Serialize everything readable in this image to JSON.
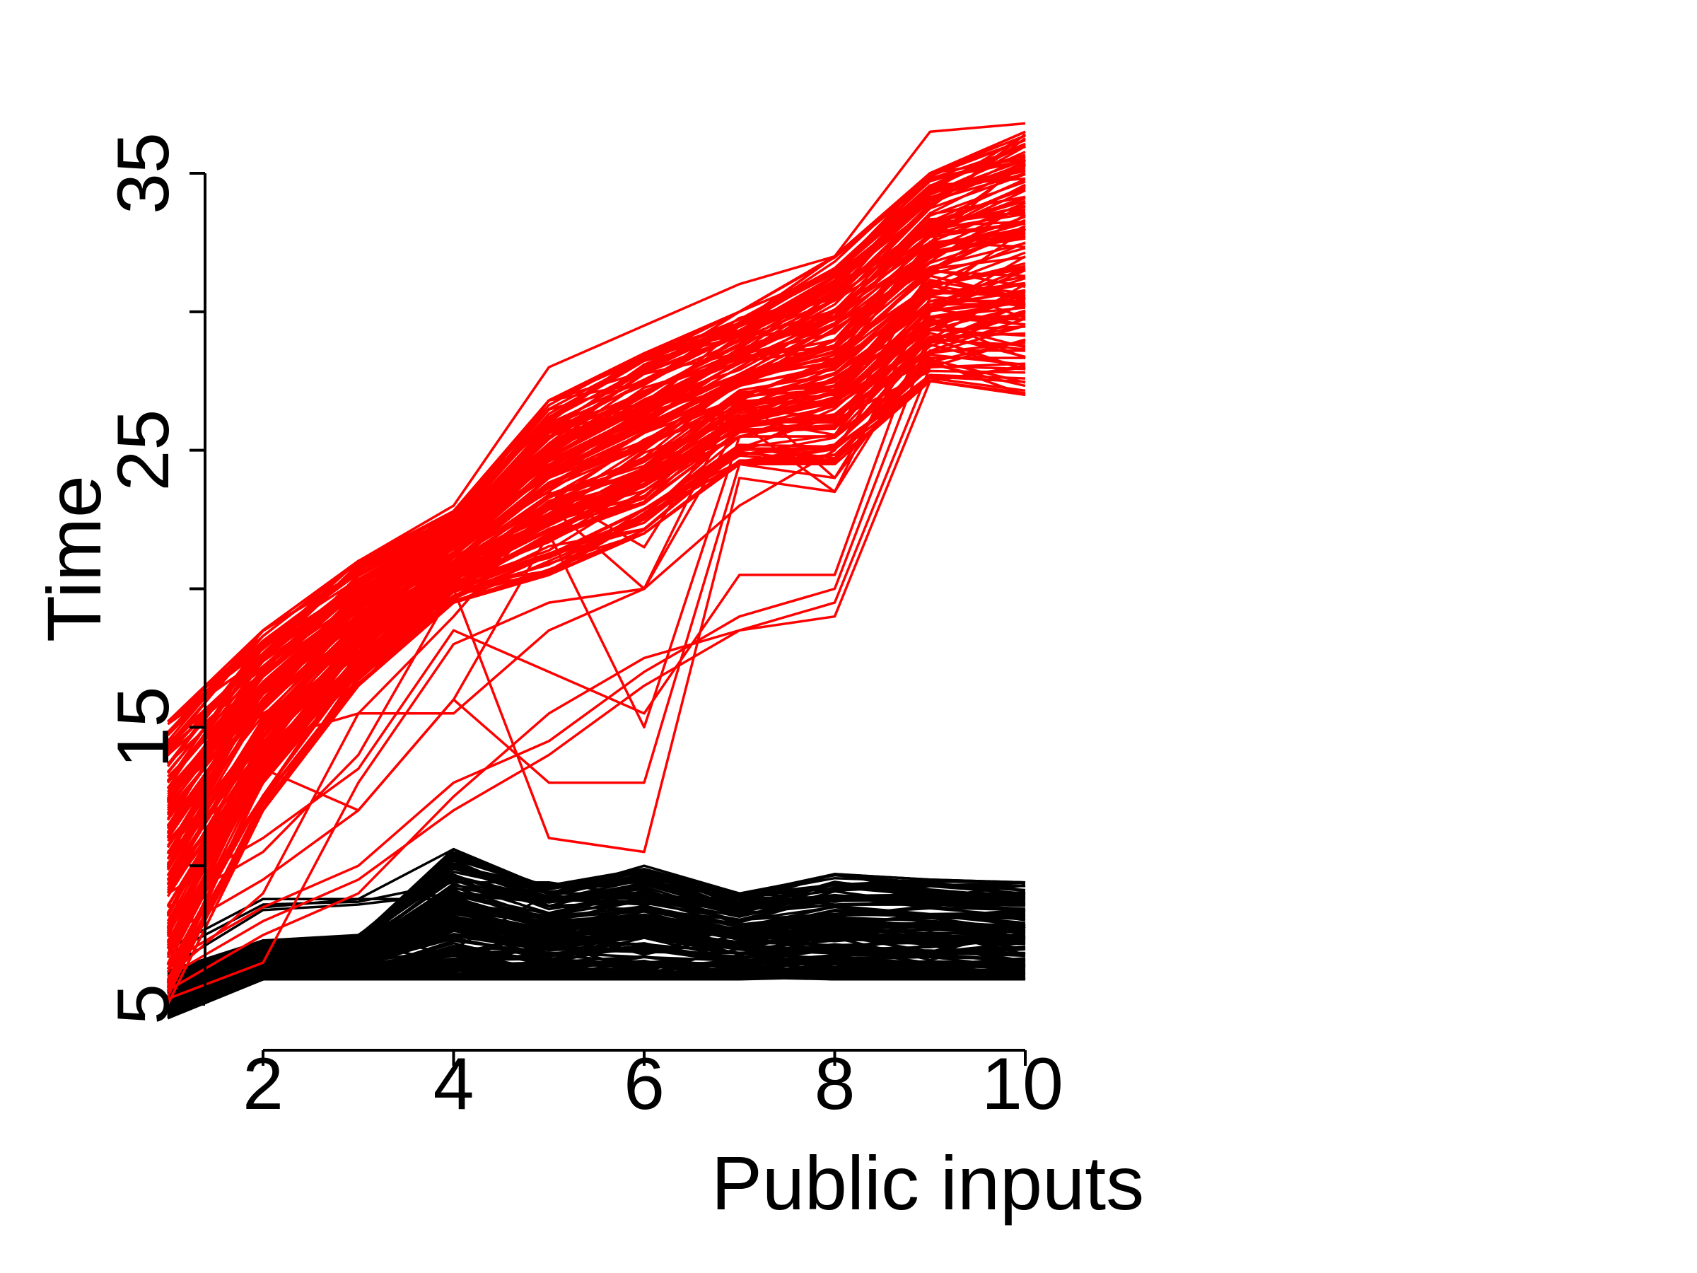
{
  "chart_data": {
    "type": "line",
    "title": "",
    "xlabel": "Public inputs",
    "ylabel": "Time",
    "x": [
      1,
      2,
      3,
      4,
      5,
      6,
      7,
      8,
      9,
      10
    ],
    "xlim": [
      1,
      10
    ],
    "ylim": [
      5,
      37
    ],
    "x_ticks": [
      2,
      4,
      6,
      8,
      10
    ],
    "x_tick_labels": [
      "2",
      "4",
      "6",
      "8",
      "10"
    ],
    "y_ticks": [
      5,
      10,
      15,
      20,
      25,
      30,
      35
    ],
    "y_tick_labels": [
      "5",
      "",
      "15",
      "",
      "25",
      "",
      "35"
    ],
    "grid": false,
    "legend": "none",
    "colors": {
      "red_group": "#ff0000",
      "black_group": "#000000"
    },
    "series_groups": [
      {
        "color": "#ff0000",
        "line_count": 160,
        "upper_band": [
          15.2,
          18.5,
          21.0,
          22.8,
          26.8,
          28.5,
          30.0,
          32.0,
          35.0,
          36.5
        ],
        "lower_band": [
          5.0,
          12.0,
          16.5,
          19.5,
          20.5,
          22.0,
          24.5,
          24.5,
          27.5,
          27.0
        ],
        "representative_lines": [
          [
            15.2,
            17.5,
            20.8,
            22.8,
            26.8,
            28.5,
            30.0,
            32.0,
            35.0,
            36.5
          ],
          [
            14.5,
            18.5,
            21.0,
            23.0,
            28.0,
            29.5,
            31.0,
            32.0,
            36.5,
            36.8
          ],
          [
            13.0,
            17.0,
            19.5,
            22.0,
            25.5,
            27.0,
            29.0,
            31.0,
            34.0,
            35.0
          ],
          [
            11.0,
            16.5,
            19.0,
            21.0,
            24.0,
            26.0,
            28.0,
            30.0,
            33.0,
            34.0
          ],
          [
            9.5,
            15.0,
            18.0,
            20.0,
            22.0,
            24.0,
            26.5,
            28.0,
            31.0,
            32.5
          ],
          [
            8.0,
            14.0,
            17.0,
            19.5,
            21.0,
            22.5,
            25.0,
            26.5,
            29.5,
            30.5
          ],
          [
            7.0,
            12.5,
            16.5,
            19.5,
            20.5,
            22.0,
            24.5,
            24.5,
            27.5,
            27.0
          ],
          [
            6.5,
            8.5,
            10.0,
            13.0,
            14.5,
            17.0,
            19.0,
            20.0,
            29.0,
            30.0
          ],
          [
            6.0,
            8.0,
            9.5,
            12.0,
            14.0,
            16.5,
            18.5,
            19.5,
            28.0,
            29.0
          ],
          [
            5.5,
            7.5,
            9.0,
            12.5,
            15.5,
            17.5,
            18.5,
            19.0,
            27.5,
            28.0
          ],
          [
            7.5,
            9.5,
            12.0,
            16.0,
            13.0,
            13.0,
            24.5,
            24.0,
            28.5,
            29.5
          ],
          [
            8.5,
            10.5,
            14.0,
            20.0,
            11.0,
            10.5,
            24.0,
            23.5,
            29.0,
            31.0
          ],
          [
            9.0,
            11.0,
            13.5,
            18.5,
            17.0,
            15.5,
            20.5,
            20.5,
            30.0,
            31.5
          ],
          [
            5.2,
            6.5,
            13.0,
            18.0,
            19.5,
            20.0,
            26.0,
            23.5,
            30.5,
            33.0
          ],
          [
            10.5,
            13.5,
            12.0,
            16.0,
            22.0,
            15.0,
            25.5,
            25.5,
            31.5,
            33.5
          ],
          [
            12.0,
            16.0,
            18.5,
            21.5,
            23.5,
            21.5,
            27.0,
            28.0,
            32.5,
            35.5
          ],
          [
            14.0,
            17.0,
            20.5,
            22.5,
            25.5,
            26.5,
            29.5,
            31.0,
            34.5,
            36.0
          ],
          [
            12.5,
            15.5,
            17.5,
            20.0,
            22.5,
            25.0,
            27.5,
            29.0,
            32.0,
            33.0
          ],
          [
            10.0,
            14.5,
            15.5,
            19.0,
            23.0,
            20.0,
            27.0,
            24.0,
            29.5,
            30.5
          ],
          [
            6.0,
            9.0,
            15.5,
            15.5,
            18.5,
            20.0,
            23.0,
            25.0,
            30.0,
            32.0
          ]
        ]
      },
      {
        "color": "#000000",
        "line_count": 140,
        "upper_band": [
          6.2,
          7.3,
          7.5,
          10.6,
          9.4,
          10.0,
          9.0,
          9.7,
          9.5,
          9.4
        ],
        "lower_band": [
          4.5,
          5.9,
          5.9,
          5.9,
          5.9,
          5.9,
          5.9,
          5.9,
          5.9,
          5.9
        ],
        "representative_lines": [
          [
            4.8,
            6.0,
            6.0,
            6.0,
            6.0,
            6.0,
            6.0,
            6.0,
            6.0,
            6.0
          ],
          [
            5.0,
            6.2,
            6.5,
            6.1,
            6.4,
            6.1,
            6.3,
            6.1,
            6.3,
            6.2
          ],
          [
            5.2,
            6.5,
            7.0,
            6.3,
            7.2,
            6.2,
            7.0,
            6.2,
            7.2,
            6.4
          ],
          [
            5.5,
            7.0,
            6.5,
            7.4,
            6.6,
            7.4,
            6.6,
            7.4,
            6.6,
            7.4
          ],
          [
            5.8,
            7.2,
            6.8,
            7.8,
            6.6,
            7.6,
            6.8,
            7.6,
            6.8,
            7.8
          ],
          [
            6.0,
            6.8,
            7.5,
            6.8,
            7.6,
            6.8,
            7.5,
            6.8,
            7.6,
            6.8
          ],
          [
            6.2,
            7.3,
            6.9,
            7.7,
            6.7,
            7.7,
            6.8,
            7.5,
            6.9,
            7.6
          ],
          [
            7.0,
            8.8,
            8.8,
            8.8,
            8.9,
            8.8,
            8.8,
            8.8,
            8.8,
            8.9
          ],
          [
            6.5,
            8.5,
            8.8,
            10.6,
            8.8,
            8.7,
            8.9,
            8.7,
            9.1,
            8.8
          ],
          [
            6.8,
            8.6,
            8.7,
            9.4,
            9.4,
            8.9,
            8.7,
            9.7,
            9.5,
            9.4
          ],
          [
            6.3,
            8.4,
            8.6,
            9.0,
            8.8,
            8.6,
            8.9,
            8.6,
            8.7,
            8.9
          ],
          [
            5.5,
            6.5,
            6.5,
            7.0,
            9.0,
            10.0,
            9.0,
            8.8,
            8.9,
            9.0
          ],
          [
            5.3,
            6.3,
            6.8,
            8.2,
            7.0,
            8.0,
            7.0,
            7.8,
            7.2,
            7.9
          ],
          [
            5.6,
            6.8,
            7.2,
            6.5,
            7.8,
            6.8,
            7.8,
            7.0,
            7.5,
            7.0
          ],
          [
            5.1,
            6.1,
            6.3,
            6.2,
            6.5,
            6.3,
            6.6,
            6.2,
            6.4,
            6.3
          ]
        ]
      }
    ]
  }
}
